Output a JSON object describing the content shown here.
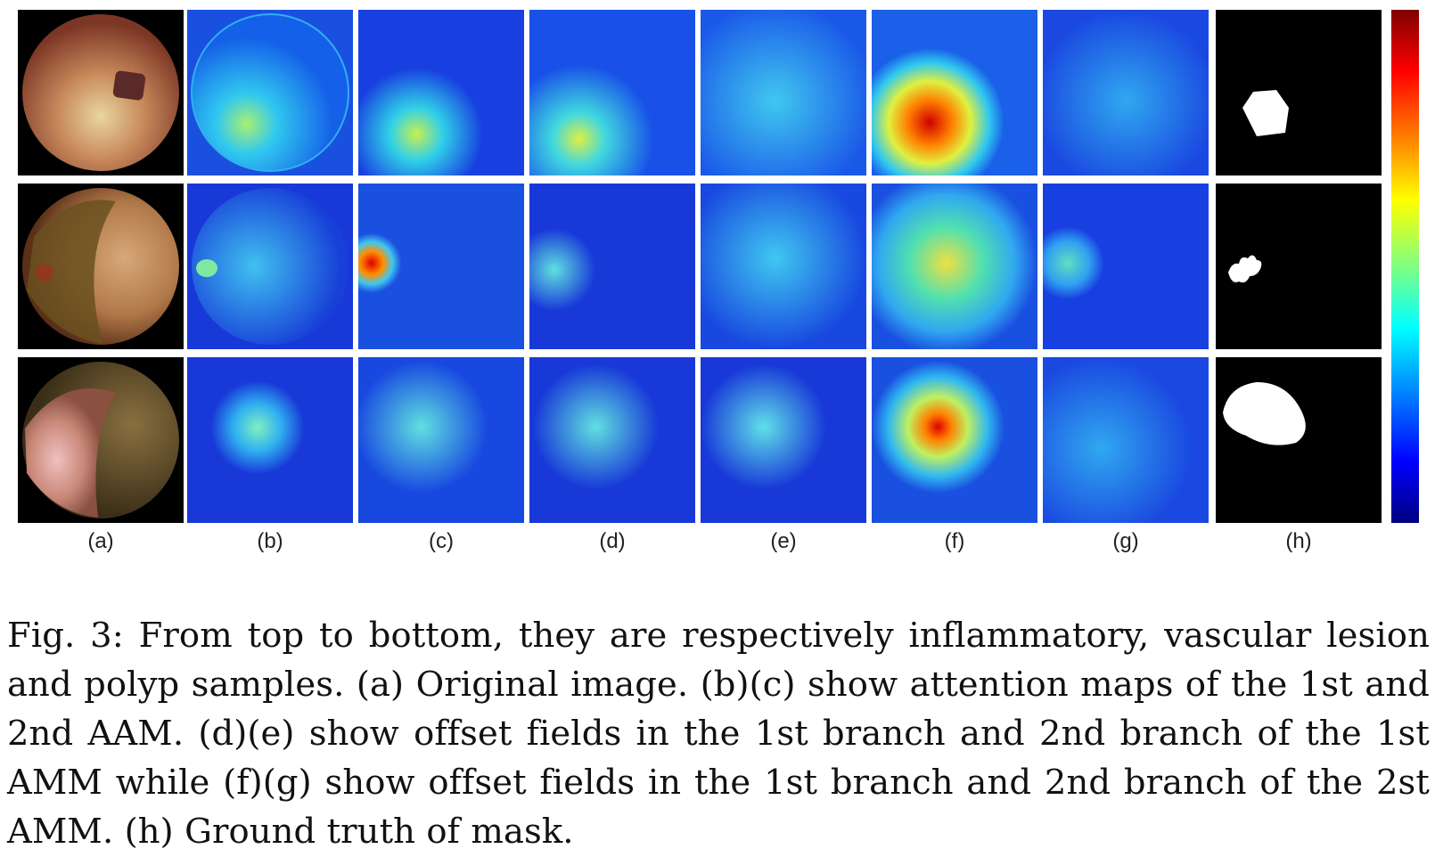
{
  "figure": {
    "columns": [
      "(a)",
      "(b)",
      "(c)",
      "(d)",
      "(e)",
      "(f)",
      "(g)",
      "(h)"
    ],
    "rows": [
      "inflammatory",
      "vascular lesion",
      "polyp"
    ]
  },
  "caption": {
    "text": "Fig. 3: From top to bottom, they are respectively inflammatory, vascular lesion and polyp samples. (a) Original image. (b)(c) show attention maps of the 1st and 2nd AAM. (d)(e) show offset fields in the 1st branch and 2nd branch of the 1st AMM while (f)(g) show offset fields in the 1st branch and 2nd branch of the 2st AMM. (h) Ground truth of mask."
  },
  "colors": {
    "colormap_high": "#800000",
    "colormap_mid": "#80ff80",
    "colormap_low": "#000080"
  }
}
